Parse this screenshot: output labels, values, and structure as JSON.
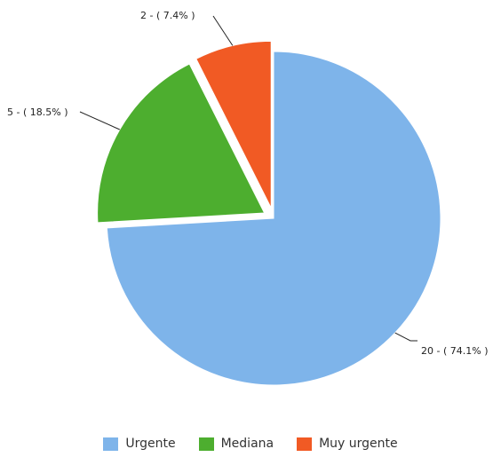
{
  "chart_data": {
    "type": "pie",
    "categories": [
      "Urgente",
      "Mediana",
      "Muy urgente"
    ],
    "values": [
      20,
      5,
      2
    ],
    "percentages": [
      74.1,
      18.5,
      7.4
    ],
    "colors": [
      "#7EB4EA",
      "#4DAE2F",
      "#F15A24"
    ],
    "data_labels": [
      "20 - ( 74.1% )",
      "5 - ( 18.5% )",
      "2 - ( 7.4% )"
    ],
    "exploded": [
      "Mediana",
      "Muy urgente"
    ],
    "legend_position": "bottom"
  },
  "legend": {
    "items": [
      {
        "label": "Urgente",
        "color": "#7EB4EA"
      },
      {
        "label": "Mediana",
        "color": "#4DAE2F"
      },
      {
        "label": "Muy urgente",
        "color": "#F15A24"
      }
    ]
  }
}
